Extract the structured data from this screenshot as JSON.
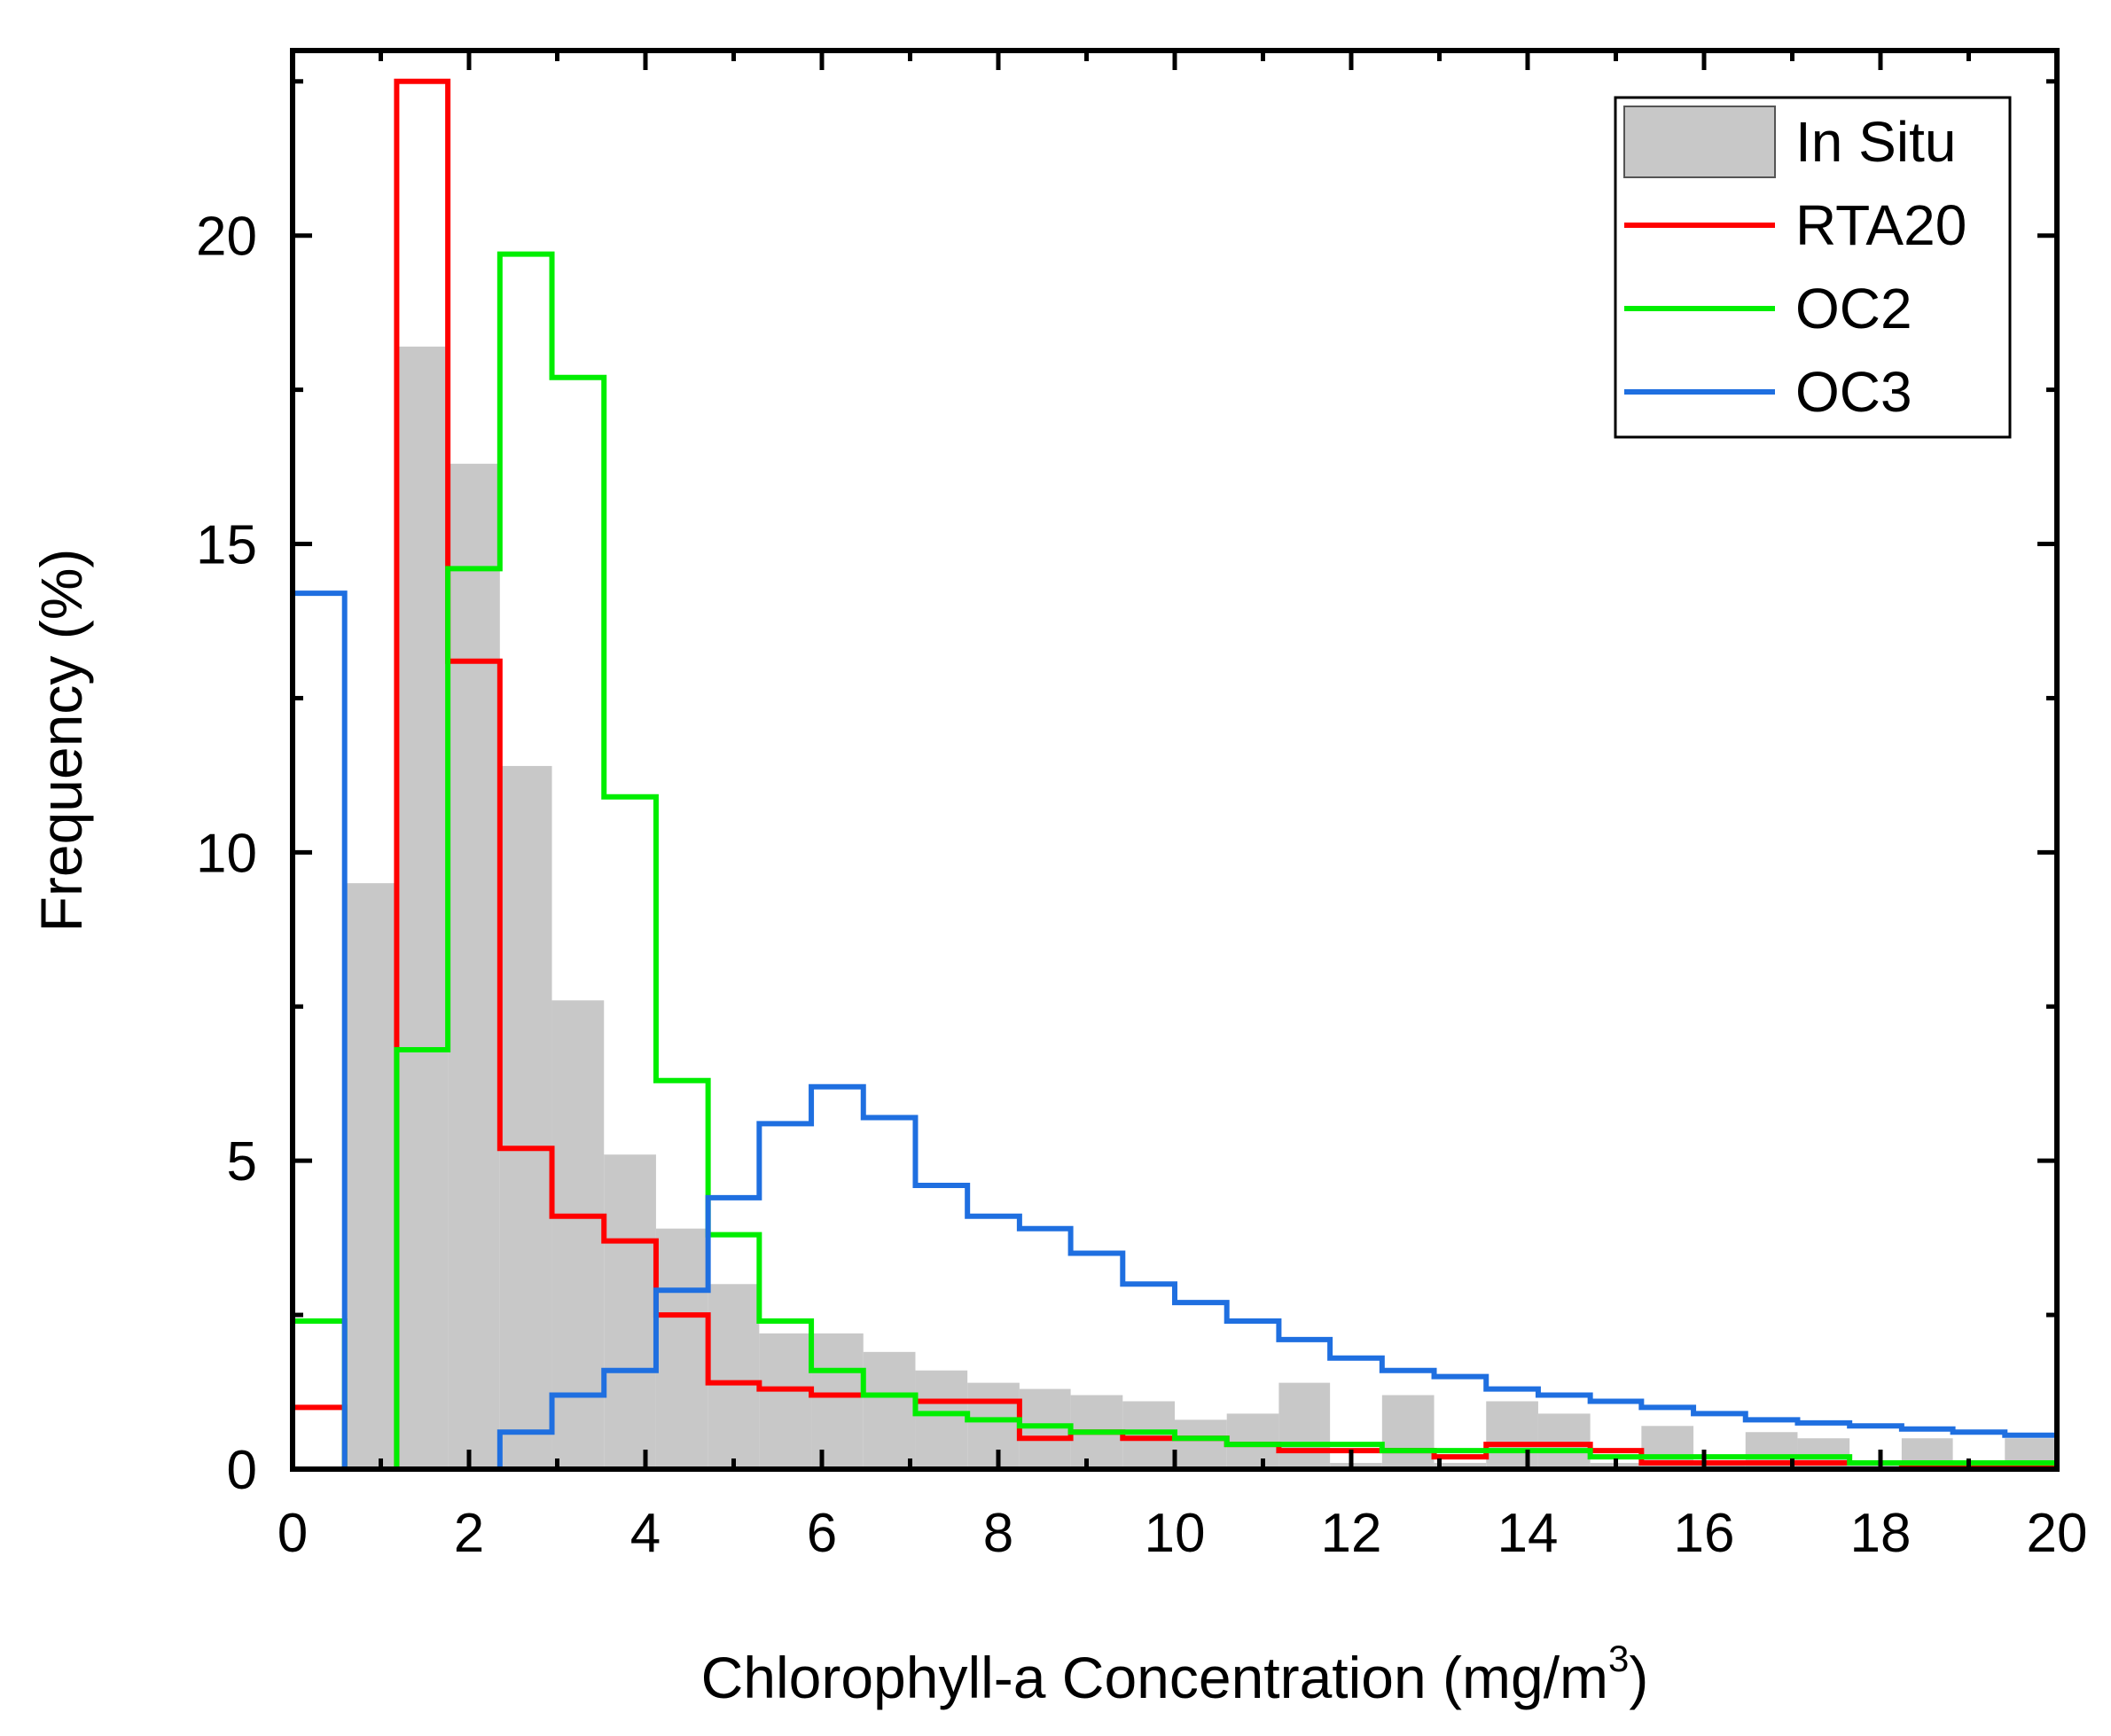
{
  "chart_data": {
    "type": "histogram",
    "title": "",
    "xlabel": "Chlorophyll-a Concentration (mg/m",
    "xlabel_superscript": "3",
    "xlabel_suffix": ")",
    "ylabel": "Frequency (%)",
    "xlim": [
      0,
      20
    ],
    "ylim": [
      0,
      23
    ],
    "x_ticks": [
      "0",
      "2",
      "4",
      "6",
      "8",
      "10",
      "12",
      "14",
      "16",
      "18",
      "20"
    ],
    "y_ticks": [
      "0",
      "5",
      "10",
      "15",
      "20"
    ],
    "bin_edges": [
      0,
      0.59,
      1.18,
      1.76,
      2.35,
      2.94,
      3.53,
      4.12,
      4.71,
      5.29,
      5.88,
      6.47,
      7.06,
      7.65,
      8.24,
      8.82,
      9.41,
      10.0,
      10.59,
      11.18,
      11.76,
      12.35,
      12.94,
      13.53,
      14.12,
      14.71,
      15.29,
      15.88,
      16.47,
      17.06,
      17.65,
      18.24,
      18.82,
      19.41,
      20.0
    ],
    "series": [
      {
        "name": "In Situ",
        "style": "filled",
        "color": "#c8c8c8",
        "values": [
          0,
          9.5,
          18.2,
          16.3,
          11.4,
          7.6,
          5.1,
          3.9,
          3.0,
          2.2,
          2.2,
          1.9,
          1.6,
          1.4,
          1.3,
          1.2,
          1.1,
          0.8,
          0.9,
          1.4,
          0.1,
          1.2,
          0.1,
          1.1,
          0.9,
          0.1,
          0.7,
          0.1,
          0.6,
          0.5,
          0.1,
          0.5,
          0.1,
          0.5
        ]
      },
      {
        "name": "RTA20",
        "style": "step",
        "color": "#ff0000",
        "values": [
          1.0,
          0.0,
          22.5,
          13.1,
          5.2,
          4.1,
          3.7,
          2.5,
          1.4,
          1.3,
          1.2,
          1.2,
          1.1,
          1.1,
          0.5,
          0.6,
          0.5,
          0.5,
          0.4,
          0.3,
          0.3,
          0.3,
          0.2,
          0.4,
          0.4,
          0.3,
          0.1,
          0.1,
          0.1,
          0.1,
          0.1,
          0.05,
          0.05,
          0.05
        ]
      },
      {
        "name": "OC2",
        "style": "step",
        "color": "#00ee00",
        "values": [
          2.4,
          0.0,
          6.8,
          14.6,
          19.7,
          17.7,
          10.9,
          6.3,
          3.8,
          2.4,
          1.6,
          1.2,
          0.9,
          0.8,
          0.7,
          0.6,
          0.6,
          0.5,
          0.4,
          0.4,
          0.4,
          0.3,
          0.3,
          0.3,
          0.3,
          0.2,
          0.2,
          0.2,
          0.2,
          0.2,
          0.1,
          0.1,
          0.1,
          0.1
        ]
      },
      {
        "name": "OC3",
        "style": "step",
        "color": "#1f6fe0",
        "values": [
          14.2,
          0.0,
          0.0,
          0.0,
          0.6,
          1.2,
          1.6,
          2.9,
          4.4,
          5.6,
          6.2,
          5.7,
          4.6,
          4.1,
          3.9,
          3.5,
          3.0,
          2.7,
          2.4,
          2.1,
          1.8,
          1.6,
          1.5,
          1.3,
          1.2,
          1.1,
          1.0,
          0.9,
          0.8,
          0.75,
          0.7,
          0.65,
          0.6,
          0.55
        ]
      }
    ],
    "legend": {
      "position": "top-right",
      "entries": [
        "In Situ",
        "RTA20",
        "OC2",
        "OC3"
      ]
    }
  }
}
